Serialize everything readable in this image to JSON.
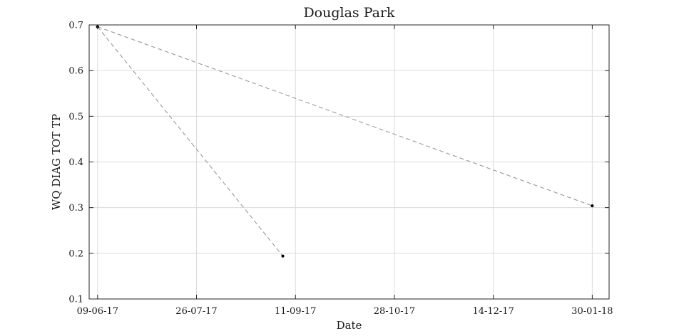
{
  "chart_data": {
    "type": "line",
    "title": "Douglas Park",
    "xlabel": "Date",
    "ylabel": "WQ DIAG TOT TP",
    "x_ticks": [
      "09-06-17",
      "26-07-17",
      "11-09-17",
      "28-10-17",
      "14-12-17",
      "30-01-18"
    ],
    "x_tick_dates": [
      "2017-06-09",
      "2017-07-26",
      "2017-09-11",
      "2017-10-28",
      "2017-12-14",
      "2018-01-30"
    ],
    "xlim": [
      "2017-06-05",
      "2018-02-07"
    ],
    "y_ticks": [
      "0.1",
      "0.2",
      "0.3",
      "0.4",
      "0.5",
      "0.6",
      "0.7"
    ],
    "ylim": [
      0.1,
      0.7
    ],
    "grid": true,
    "series": [
      {
        "style": "dashed",
        "points": [
          {
            "x": "2017-06-09",
            "y": 0.696
          },
          {
            "x": "2017-09-05",
            "y": 0.194
          }
        ]
      },
      {
        "style": "dashed",
        "points": [
          {
            "x": "2017-06-09",
            "y": 0.696
          },
          {
            "x": "2018-01-30",
            "y": 0.304
          }
        ]
      }
    ],
    "colors": {
      "line": "#999999",
      "marker": "#000000",
      "grid": "#dcdcdc",
      "frame": "#262626"
    }
  }
}
